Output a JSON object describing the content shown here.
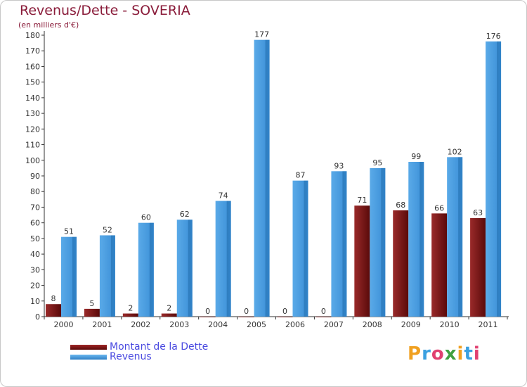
{
  "header": {
    "title": "Revenus/Dette - SOVERIA",
    "subtitle": "(en milliers d'€)"
  },
  "chart_data": {
    "type": "bar",
    "title": "Revenus/Dette - SOVERIA",
    "ylabel": "(en milliers d'€)",
    "ylim": [
      0,
      180
    ],
    "yticks": [
      0,
      10,
      20,
      30,
      40,
      50,
      60,
      70,
      80,
      90,
      100,
      110,
      120,
      130,
      140,
      150,
      160,
      170,
      180
    ],
    "grid": false,
    "legend_position": "bottom-left",
    "categories": [
      "2000",
      "2001",
      "2002",
      "2003",
      "2004",
      "2005",
      "2006",
      "2007",
      "2008",
      "2009",
      "2010",
      "2011"
    ],
    "series": [
      {
        "name": "Montant de la Dette",
        "color": "#7a1a1a",
        "values": [
          8,
          5,
          2,
          2,
          0,
          0,
          0,
          0,
          71,
          68,
          66,
          63
        ]
      },
      {
        "name": "Revenus",
        "color": "#4a9fe0",
        "values": [
          51,
          52,
          60,
          62,
          74,
          177,
          87,
          93,
          95,
          99,
          102,
          176
        ]
      }
    ]
  },
  "legend": {
    "items": [
      {
        "label": "Montant de la Dette",
        "color": "#7a1a1a"
      },
      {
        "label": "Revenus",
        "color": "#4a9fe0"
      }
    ]
  },
  "logo": {
    "letters": [
      "P",
      "r",
      "o",
      "x",
      "i",
      "t",
      "i"
    ],
    "colors": [
      "#f0a020",
      "#3aa0e0",
      "#e04070",
      "#40a040",
      "#f0a020",
      "#3aa0e0",
      "#e04070"
    ]
  }
}
